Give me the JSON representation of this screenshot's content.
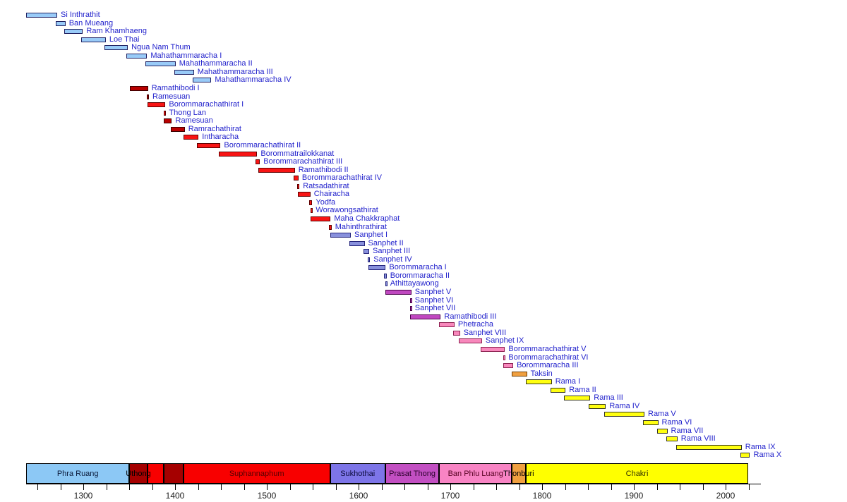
{
  "chart_data": {
    "type": "timeline",
    "x_axis": {
      "unit": "year",
      "range": [
        1238,
        2025
      ],
      "tick_values": [
        1300,
        1400,
        1500,
        1600,
        1700,
        1800,
        1900,
        2000
      ],
      "tick_labels": [
        "1300",
        "1400",
        "1500",
        "1600",
        "1700",
        "1800",
        "1900",
        "2000"
      ],
      "minor_tick_step": 25,
      "grid": false
    },
    "monarch_label_color": "#2222CC",
    "dynasty_colors": {
      "phraruang": {
        "fill": "#99CBF8",
        "border": "#202060",
        "band": "#8CC8F5",
        "band_text": "#0a1a3a"
      },
      "uthong": {
        "fill": "#B80000",
        "border": "#3c0000",
        "band": "#A50000",
        "band_text": "#000000"
      },
      "suphannaphum": {
        "fill": "#F81414",
        "border": "#600000",
        "band": "#F80000",
        "band_text": "#550000"
      },
      "sukhothai": {
        "fill": "#8890DC",
        "border": "#23237a",
        "band": "#7D75E8",
        "band_text": "#0a0a3a"
      },
      "prasatthong": {
        "fill": "#C048C0",
        "border": "#4a004a",
        "band": "#C24FC2",
        "band_text": "#2a002a"
      },
      "banphluluang": {
        "fill": "#F888BC",
        "border": "#8c2050",
        "band": "#F884C4",
        "band_text": "#550020"
      },
      "thonburi": {
        "fill": "#F0A040",
        "border": "#6b3a00",
        "band": "#F0A040",
        "band_text": "#000000"
      },
      "chakri": {
        "fill": "#FFFF10",
        "border": "#333320",
        "band": "#FFFF00",
        "band_text": "#333300"
      }
    },
    "monarchs": [
      {
        "name": "Si Inthrathit",
        "start": 1238,
        "end": 1270,
        "dynasty": "phraruang"
      },
      {
        "name": "Ban Mueang",
        "start": 1270,
        "end": 1279,
        "dynasty": "phraruang"
      },
      {
        "name": "Ram Khamhaeng",
        "start": 1279,
        "end": 1298,
        "dynasty": "phraruang"
      },
      {
        "name": "Loe Thai",
        "start": 1298,
        "end": 1323,
        "dynasty": "phraruang"
      },
      {
        "name": "Ngua Nam Thum",
        "start": 1323,
        "end": 1347,
        "dynasty": "phraruang"
      },
      {
        "name": "Mahathammaracha I",
        "start": 1347,
        "end": 1368,
        "dynasty": "phraruang"
      },
      {
        "name": "Mahathammaracha II",
        "start": 1368,
        "end": 1399,
        "dynasty": "phraruang"
      },
      {
        "name": "Mahathammaracha III",
        "start": 1399,
        "end": 1419,
        "dynasty": "phraruang"
      },
      {
        "name": "Mahathammaracha IV",
        "start": 1419,
        "end": 1438,
        "dynasty": "phraruang"
      },
      {
        "name": "Ramathibodi I",
        "start": 1351,
        "end": 1369,
        "dynasty": "uthong"
      },
      {
        "name": "Ramesuan",
        "start": 1369,
        "end": 1370,
        "dynasty": "uthong"
      },
      {
        "name": "Borommarachathirat I",
        "start": 1370,
        "end": 1388,
        "dynasty": "suphannaphum"
      },
      {
        "name": "Thong Lan",
        "start": 1388,
        "end": 1388,
        "dynasty": "suphannaphum"
      },
      {
        "name": "Ramesuan",
        "start": 1388,
        "end": 1395,
        "dynasty": "uthong"
      },
      {
        "name": "Ramrachathirat",
        "start": 1395,
        "end": 1409,
        "dynasty": "uthong"
      },
      {
        "name": "Intharacha",
        "start": 1409,
        "end": 1424,
        "dynasty": "suphannaphum"
      },
      {
        "name": "Borommarachathirat II",
        "start": 1424,
        "end": 1448,
        "dynasty": "suphannaphum"
      },
      {
        "name": "Borommatrailokkanat",
        "start": 1448,
        "end": 1488,
        "dynasty": "suphannaphum"
      },
      {
        "name": "Borommarachathirat III",
        "start": 1488,
        "end": 1491,
        "dynasty": "suphannaphum"
      },
      {
        "name": "Ramathibodi II",
        "start": 1491,
        "end": 1529,
        "dynasty": "suphannaphum"
      },
      {
        "name": "Borommarachathirat IV",
        "start": 1529,
        "end": 1533,
        "dynasty": "suphannaphum"
      },
      {
        "name": "Ratsadathirat",
        "start": 1533,
        "end": 1534,
        "dynasty": "suphannaphum"
      },
      {
        "name": "Chairacha",
        "start": 1534,
        "end": 1546,
        "dynasty": "suphannaphum"
      },
      {
        "name": "Yodfa",
        "start": 1546,
        "end": 1548,
        "dynasty": "suphannaphum"
      },
      {
        "name": "Worawongsathirat",
        "start": 1548,
        "end": 1548,
        "dynasty": "suphannaphum"
      },
      {
        "name": "Maha Chakkraphat",
        "start": 1548,
        "end": 1568,
        "dynasty": "suphannaphum"
      },
      {
        "name": "Mahinthrathirat",
        "start": 1568,
        "end": 1569,
        "dynasty": "suphannaphum"
      },
      {
        "name": "Sanphet I",
        "start": 1569,
        "end": 1590,
        "dynasty": "sukhothai"
      },
      {
        "name": "Sanphet II",
        "start": 1590,
        "end": 1605,
        "dynasty": "sukhothai"
      },
      {
        "name": "Sanphet III",
        "start": 1605,
        "end": 1610,
        "dynasty": "sukhothai"
      },
      {
        "name": "Sanphet IV",
        "start": 1610,
        "end": 1611,
        "dynasty": "sukhothai"
      },
      {
        "name": "Borommaracha I",
        "start": 1611,
        "end": 1628,
        "dynasty": "sukhothai"
      },
      {
        "name": "Borommaracha II",
        "start": 1628,
        "end": 1629,
        "dynasty": "sukhothai"
      },
      {
        "name": "Athittayawong",
        "start": 1629,
        "end": 1629,
        "dynasty": "sukhothai"
      },
      {
        "name": "Sanphet V",
        "start": 1629,
        "end": 1656,
        "dynasty": "prasatthong"
      },
      {
        "name": "Sanphet VI",
        "start": 1656,
        "end": 1656,
        "dynasty": "prasatthong"
      },
      {
        "name": "Sanphet VII",
        "start": 1656,
        "end": 1656,
        "dynasty": "prasatthong"
      },
      {
        "name": "Ramathibodi III",
        "start": 1656,
        "end": 1688,
        "dynasty": "prasatthong"
      },
      {
        "name": "Phetracha",
        "start": 1688,
        "end": 1703,
        "dynasty": "banphluluang"
      },
      {
        "name": "Sanphet VIII",
        "start": 1703,
        "end": 1709,
        "dynasty": "banphluluang"
      },
      {
        "name": "Sanphet IX",
        "start": 1709,
        "end": 1733,
        "dynasty": "banphluluang"
      },
      {
        "name": "Borommarachathirat V",
        "start": 1733,
        "end": 1758,
        "dynasty": "banphluluang"
      },
      {
        "name": "Borommarachathirat VI",
        "start": 1758,
        "end": 1758,
        "dynasty": "banphluluang"
      },
      {
        "name": "Borommaracha III",
        "start": 1758,
        "end": 1767,
        "dynasty": "banphluluang"
      },
      {
        "name": "Taksin",
        "start": 1767,
        "end": 1782,
        "dynasty": "thonburi"
      },
      {
        "name": "Rama I",
        "start": 1782,
        "end": 1809,
        "dynasty": "chakri"
      },
      {
        "name": "Rama II",
        "start": 1809,
        "end": 1824,
        "dynasty": "chakri"
      },
      {
        "name": "Rama III",
        "start": 1824,
        "end": 1851,
        "dynasty": "chakri"
      },
      {
        "name": "Rama IV",
        "start": 1851,
        "end": 1868,
        "dynasty": "chakri"
      },
      {
        "name": "Rama V",
        "start": 1868,
        "end": 1910,
        "dynasty": "chakri"
      },
      {
        "name": "Rama VI",
        "start": 1910,
        "end": 1925,
        "dynasty": "chakri"
      },
      {
        "name": "Rama VII",
        "start": 1925,
        "end": 1935,
        "dynasty": "chakri"
      },
      {
        "name": "Rama VIII",
        "start": 1935,
        "end": 1946,
        "dynasty": "chakri"
      },
      {
        "name": "Rama IX",
        "start": 1946,
        "end": 2016,
        "dynasty": "chakri"
      },
      {
        "name": "Rama X",
        "start": 2016,
        "end": 2025,
        "dynasty": "chakri"
      }
    ],
    "periods": [
      {
        "name": "Phra Ruang",
        "start": 1238,
        "end": 1350,
        "dynasty": "phraruang"
      },
      {
        "name": "Uthong",
        "start": 1350,
        "end": 1370,
        "dynasty": "uthong"
      },
      {
        "name": "",
        "start": 1370,
        "end": 1388,
        "dynasty": "suphannaphum"
      },
      {
        "name": "",
        "start": 1388,
        "end": 1409,
        "dynasty": "uthong"
      },
      {
        "name": "Suphannaphum",
        "start": 1409,
        "end": 1569,
        "dynasty": "suphannaphum"
      },
      {
        "name": "Sukhothai",
        "start": 1569,
        "end": 1629,
        "dynasty": "sukhothai"
      },
      {
        "name": "Prasat Thong",
        "start": 1629,
        "end": 1688,
        "dynasty": "prasatthong"
      },
      {
        "name": "Ban Phlu Luang",
        "start": 1688,
        "end": 1767,
        "dynasty": "banphluluang"
      },
      {
        "name": "Thonburi",
        "start": 1767,
        "end": 1782,
        "dynasty": "thonburi"
      },
      {
        "name": "Chakri",
        "start": 1782,
        "end": 2025,
        "dynasty": "chakri"
      }
    ]
  }
}
